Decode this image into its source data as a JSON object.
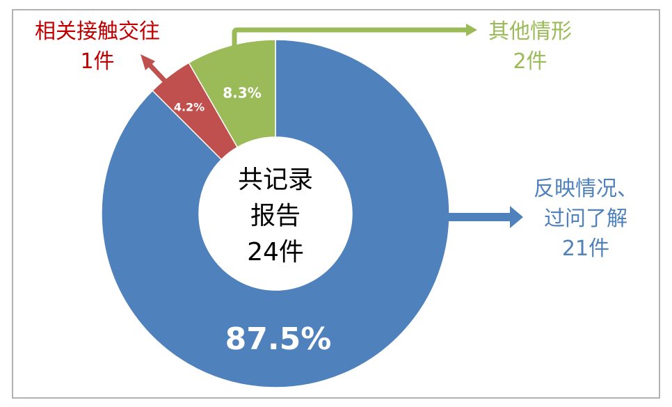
{
  "chart_data": {
    "type": "donut",
    "categories": [
      "反映情况、\n过问了解",
      "相关接触交往",
      "其他情形"
    ],
    "values": [
      87.5,
      4.2,
      8.3
    ],
    "value_labels": [
      "87.5%",
      "4.2%",
      "8.3%"
    ],
    "count_labels": [
      "21件",
      "1件",
      "2件"
    ],
    "colors": [
      "#4f81bd",
      "#c0504d",
      "#9bbb59"
    ],
    "center_text": [
      "共记录",
      "报告",
      "24件"
    ]
  }
}
